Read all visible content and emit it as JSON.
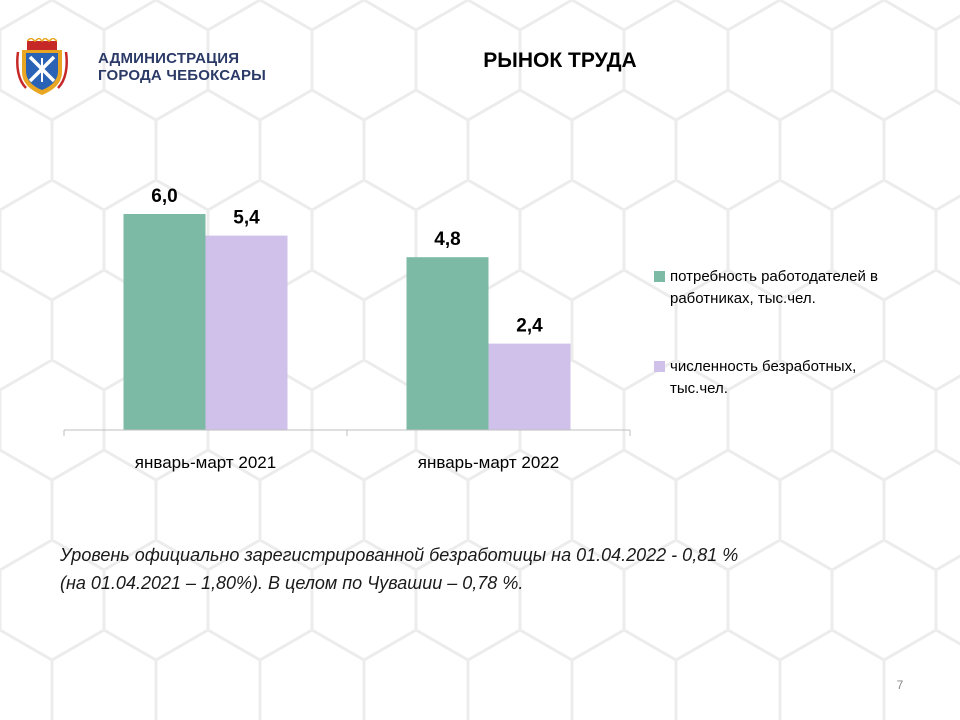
{
  "header": {
    "org_line1": "АДМИНИСТРАЦИЯ",
    "org_line2": "ГОРОДА ЧЕБОКСАРЫ",
    "title": "РЫНОК ТРУДА"
  },
  "colors": {
    "series_1": "#7dbaa6",
    "series_2": "#d0c1ea",
    "org_text": "#2b3a67"
  },
  "chart_data": {
    "type": "bar",
    "categories": [
      "январь-март 2021",
      "январь-март 2022"
    ],
    "series": [
      {
        "name": "потребность работодателей в работниках, тыс.чел.",
        "values": [
          6.0,
          4.8
        ],
        "labels": [
          "6,0",
          "4,8"
        ]
      },
      {
        "name": "численность безработных, тыс.чел.",
        "values": [
          5.4,
          2.4
        ],
        "labels": [
          "5,4",
          "2,4"
        ]
      }
    ],
    "ylim": [
      0,
      6.6
    ],
    "grid": false,
    "legend_position": "right"
  },
  "legend": {
    "item1_line1": "потребность работодателей в",
    "item1_line2": "работниках, тыс.чел.",
    "item2_line1": "численность безработных,",
    "item2_line2": "тыс.чел."
  },
  "note": {
    "line1": "Уровень официально зарегистрированной безработицы на 01.04.2022 - 0,81 %",
    "line2": "(на 01.04.2021 – 1,80%). В целом по Чувашии – 0,78 %."
  },
  "page_number": "7",
  "icons": {
    "logo": "city-coat-of-arms-icon"
  }
}
